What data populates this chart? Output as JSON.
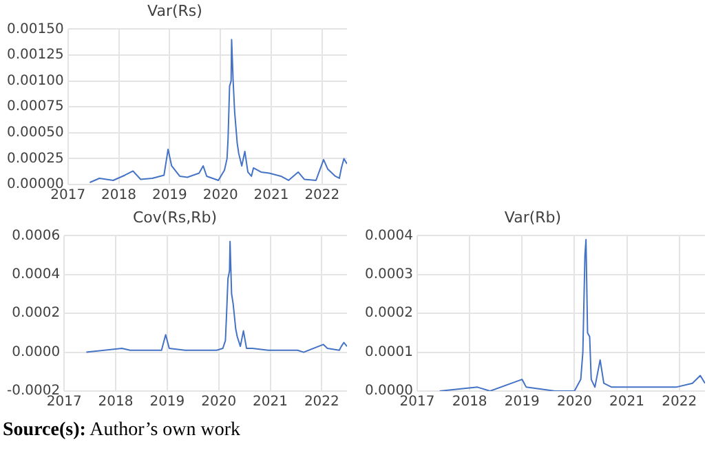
{
  "chart_data": [
    {
      "type": "line",
      "title": "Var(Rs)",
      "color": "#4472c4",
      "grid": true,
      "marker": "none",
      "line_style": "solid",
      "legend": false,
      "x": [
        2017.43,
        2017.62,
        2017.89,
        2018.12,
        2018.28,
        2018.43,
        2018.66,
        2018.89,
        2018.97,
        2019.04,
        2019.2,
        2019.35,
        2019.58,
        2019.66,
        2019.73,
        2019.96,
        2020.08,
        2020.13,
        2020.15,
        2020.18,
        2020.21,
        2020.22,
        2020.25,
        2020.28,
        2020.33,
        2020.36,
        2020.42,
        2020.48,
        2020.54,
        2020.61,
        2020.65,
        2020.8,
        2020.96,
        2021.19,
        2021.34,
        2021.53,
        2021.65,
        2021.88,
        2022.03,
        2022.11,
        2022.26,
        2022.34,
        2022.38,
        2022.43,
        2022.49
      ],
      "values": [
        2e-05,
        6e-05,
        4e-05,
        9e-05,
        0.00013,
        5e-05,
        6e-05,
        9e-05,
        0.00034,
        0.00018,
        8e-05,
        7e-05,
        0.00011,
        0.00018,
        8e-05,
        4e-05,
        0.00014,
        0.00025,
        0.00044,
        0.00095,
        0.001,
        0.0014,
        0.001,
        0.0007,
        0.0004,
        0.0003,
        0.00018,
        0.00032,
        0.00012,
        8e-05,
        0.00016,
        0.00012,
        0.00011,
        8e-05,
        4e-05,
        0.00012,
        5e-05,
        4e-05,
        0.00024,
        0.00015,
        8e-05,
        6e-05,
        0.00016,
        0.00025,
        0.0002
      ],
      "xlim": [
        2017,
        2022.49
      ],
      "xticks": [
        2017,
        2018,
        2019,
        2020,
        2021,
        2022
      ],
      "ylim": [
        0,
        0.0015
      ],
      "yticks": [
        {
          "value": 0,
          "label": "0.00000"
        },
        {
          "value": 0.00025,
          "label": "0.00025"
        },
        {
          "value": 0.0005,
          "label": "0.00050"
        },
        {
          "value": 0.00075,
          "label": "0.00075"
        },
        {
          "value": 0.001,
          "label": "0.00100"
        },
        {
          "value": 0.00125,
          "label": "0.00125"
        },
        {
          "value": 0.0015,
          "label": "0.00150"
        }
      ]
    },
    {
      "type": "line",
      "title": "Cov(Rs,Rb)",
      "color": "#4472c4",
      "grid": true,
      "marker": "none",
      "line_style": "solid",
      "legend": false,
      "x": [
        2017.43,
        2018.12,
        2018.28,
        2018.66,
        2018.89,
        2018.97,
        2019.04,
        2019.35,
        2019.73,
        2019.96,
        2020.08,
        2020.13,
        2020.15,
        2020.18,
        2020.21,
        2020.22,
        2020.25,
        2020.28,
        2020.33,
        2020.36,
        2020.42,
        2020.48,
        2020.54,
        2020.65,
        2020.96,
        2021.53,
        2021.65,
        2022.03,
        2022.11,
        2022.34,
        2022.38,
        2022.43,
        2022.49
      ],
      "values": [
        0,
        2e-05,
        1e-05,
        1e-05,
        1e-05,
        9e-05,
        2e-05,
        1e-05,
        1e-05,
        1e-05,
        2e-05,
        6e-05,
        0.00018,
        0.00038,
        0.00042,
        0.00057,
        0.0003,
        0.00025,
        0.00012,
        8e-05,
        3e-05,
        0.00011,
        2e-05,
        2e-05,
        1e-05,
        1e-05,
        0,
        4e-05,
        2e-05,
        1e-05,
        3e-05,
        5e-05,
        3e-05
      ],
      "xlim": [
        2017,
        2022.49
      ],
      "xticks": [
        2017,
        2018,
        2019,
        2020,
        2021,
        2022
      ],
      "ylim": [
        -0.0002,
        0.0006
      ],
      "yticks": [
        {
          "value": -0.0002,
          "label": "-0.0002"
        },
        {
          "value": 0,
          "label": "0.0000"
        },
        {
          "value": 0.0002,
          "label": "0.0002"
        },
        {
          "value": 0.0004,
          "label": "0.0004"
        },
        {
          "value": 0.0006,
          "label": "0.0006"
        }
      ],
      "annotations": [
        "Source(s): Author’s own work"
      ]
    },
    {
      "type": "line",
      "title": "Var(Rb)",
      "color": "#4472c4",
      "grid": true,
      "marker": "none",
      "line_style": "solid",
      "legend": false,
      "x": [
        2017.43,
        2018.15,
        2018.39,
        2019.0,
        2019.08,
        2019.63,
        2020.0,
        2020.12,
        2020.16,
        2020.2,
        2020.22,
        2020.25,
        2020.29,
        2020.32,
        2020.39,
        2020.49,
        2020.56,
        2020.71,
        2021.4,
        2021.94,
        2022.25,
        2022.4,
        2022.49
      ],
      "values": [
        0,
        1e-05,
        0,
        3e-05,
        1e-05,
        0,
        0,
        3e-05,
        0.0001,
        0.00035,
        0.00039,
        0.00015,
        0.00014,
        3e-05,
        1e-05,
        8e-05,
        2e-05,
        1e-05,
        1e-05,
        1e-05,
        2e-05,
        4e-05,
        2e-05
      ],
      "xlim": [
        2017,
        2022.49
      ],
      "xticks": [
        2017,
        2018,
        2019,
        2020,
        2021,
        2022
      ],
      "ylim": [
        0,
        0.0004
      ],
      "yticks": [
        {
          "value": 0,
          "label": "0.0000"
        },
        {
          "value": 0.0001,
          "label": "0.0001"
        },
        {
          "value": 0.0002,
          "label": "0.0002"
        },
        {
          "value": 0.0003,
          "label": "0.0003"
        },
        {
          "value": 0.0004,
          "label": "0.0004"
        }
      ]
    }
  ]
}
